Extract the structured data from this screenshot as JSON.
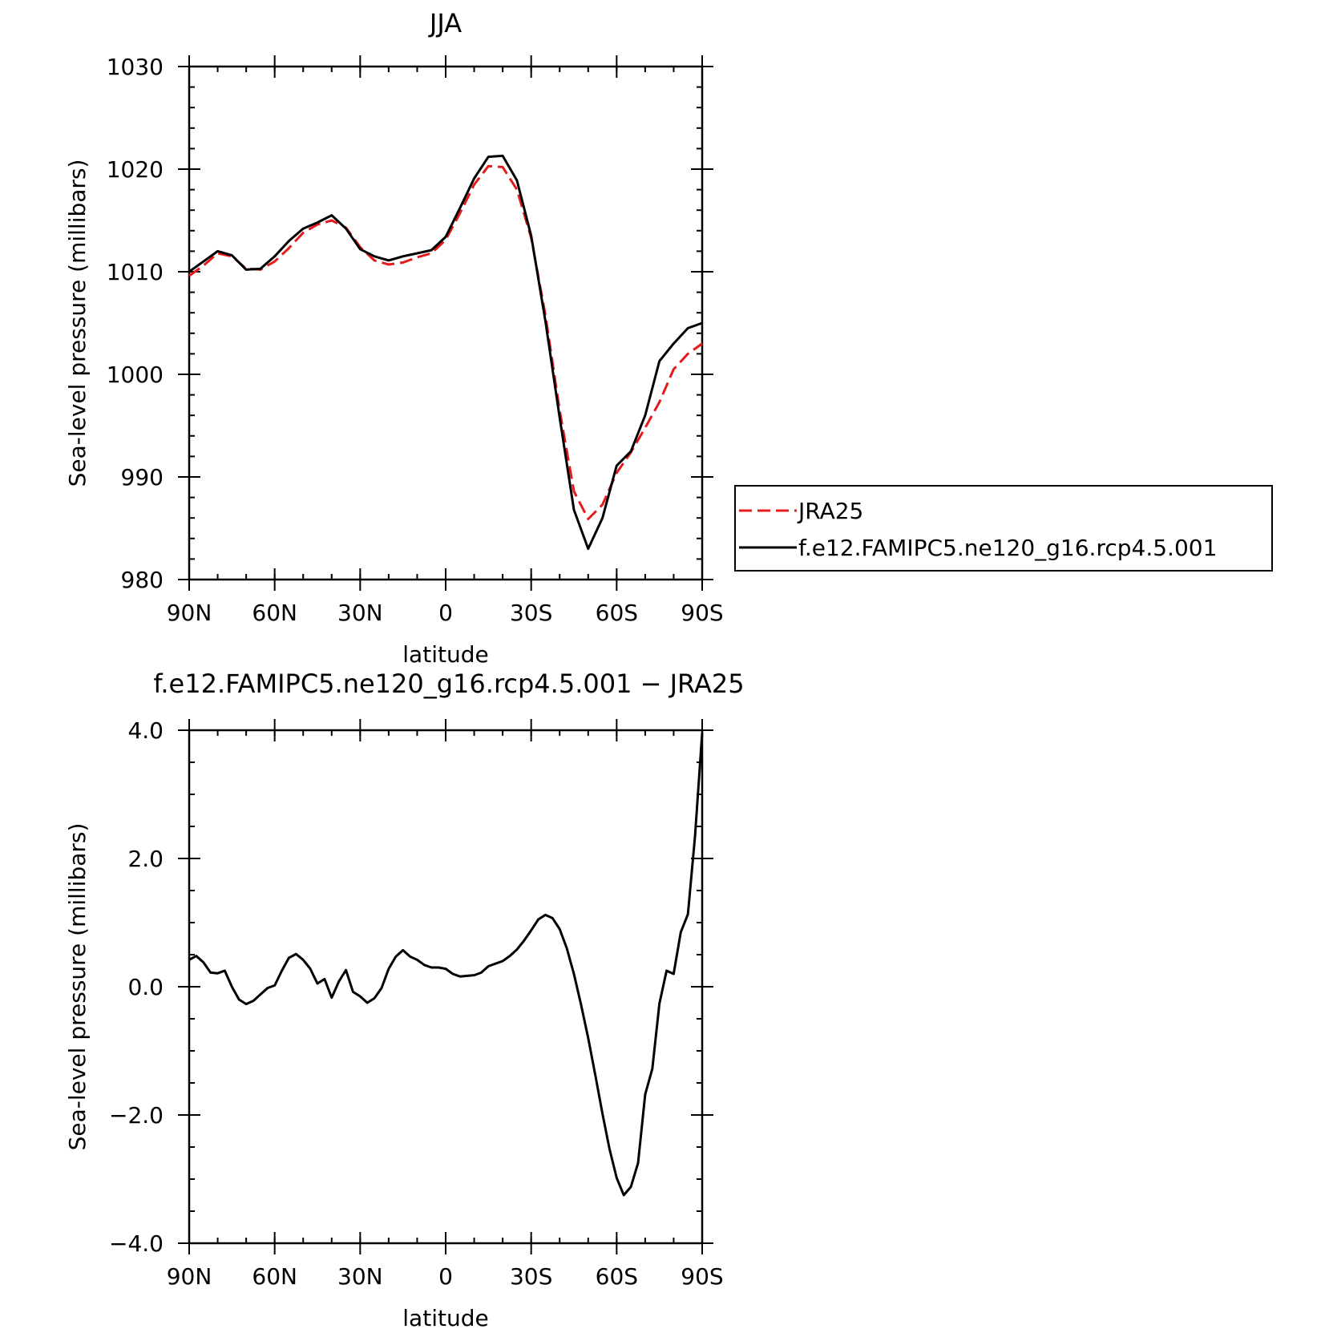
{
  "chart_data": [
    {
      "type": "line",
      "title": "JJA",
      "xlabel": "latitude",
      "ylabel": "Sea-level pressure (millibars)",
      "xlim": [
        90,
        -90
      ],
      "ylim": [
        980,
        1030
      ],
      "x_tick_values": [
        90,
        60,
        30,
        0,
        -30,
        -60,
        -90
      ],
      "x_tick_labels": [
        "90N",
        "60N",
        "30N",
        "0",
        "30S",
        "60S",
        "90S"
      ],
      "y_tick_values": [
        980,
        990,
        1000,
        1010,
        1020,
        1030
      ],
      "y_tick_labels": [
        "980",
        "990",
        "1000",
        "1010",
        "1020",
        "1030"
      ],
      "grid": false,
      "legend_position": "right",
      "series": [
        {
          "name": "JRA25",
          "color": "#e41a1c",
          "style": "dashed",
          "x": [
            90,
            85,
            80,
            75,
            70,
            65,
            60,
            55,
            50,
            45,
            40,
            35,
            30,
            25,
            20,
            15,
            10,
            5,
            0,
            -5,
            -10,
            -15,
            -20,
            -25,
            -30,
            -35,
            -40,
            -45,
            -50,
            -55,
            -60,
            -65,
            -70,
            -75,
            -80,
            -85,
            -90
          ],
          "y": [
            1009.6,
            1010.6,
            1011.8,
            1011.5,
            1010.3,
            1010.2,
            1011.0,
            1012.3,
            1013.8,
            1014.6,
            1015.0,
            1014.3,
            1012.4,
            1011.1,
            1010.7,
            1010.9,
            1011.4,
            1011.8,
            1013.1,
            1015.7,
            1018.5,
            1020.3,
            1020.2,
            1018.0,
            1013.3,
            1005.8,
            996.5,
            988.6,
            985.9,
            987.3,
            990.4,
            992.4,
            994.8,
            997.3,
            1000.5,
            1002.0,
            1003.0
          ]
        },
        {
          "name": "f.e12.FAMIPC5.ne120_g16.rcp4.5.001",
          "color": "#000000",
          "style": "solid",
          "x": [
            90,
            85,
            80,
            75,
            70,
            65,
            60,
            55,
            50,
            45,
            40,
            35,
            30,
            25,
            20,
            15,
            10,
            5,
            0,
            -5,
            -10,
            -15,
            -20,
            -25,
            -30,
            -35,
            -40,
            -45,
            -50,
            -55,
            -60,
            -65,
            -70,
            -75,
            -80,
            -85,
            -90
          ],
          "y": [
            1010.0,
            1011.0,
            1012.0,
            1011.6,
            1010.2,
            1010.3,
            1011.5,
            1013.0,
            1014.2,
            1014.8,
            1015.5,
            1014.2,
            1012.2,
            1011.5,
            1011.1,
            1011.5,
            1011.8,
            1012.1,
            1013.4,
            1016.2,
            1019.1,
            1021.2,
            1021.3,
            1018.9,
            1013.5,
            1005.2,
            995.8,
            986.8,
            983.0,
            986.0,
            991.1,
            992.5,
            996.0,
            1001.3,
            1003.0,
            1004.5,
            1005.0
          ]
        }
      ]
    },
    {
      "type": "line",
      "title": "f.e12.FAMIPC5.ne120_g16.rcp4.5.001 − JRA25",
      "xlabel": "latitude",
      "ylabel": "Sea-level pressure (millibars)",
      "xlim": [
        90,
        -90
      ],
      "ylim": [
        -4.0,
        4.0
      ],
      "x_tick_values": [
        90,
        60,
        30,
        0,
        -30,
        -60,
        -90
      ],
      "x_tick_labels": [
        "90N",
        "60N",
        "30N",
        "0",
        "30S",
        "60S",
        "90S"
      ],
      "y_tick_values": [
        -4,
        -2,
        0,
        2,
        4
      ],
      "y_tick_labels": [
        "−4.0",
        "−2.0",
        "0.0",
        "2.0",
        "4.0"
      ],
      "grid": false,
      "series": [
        {
          "name": "",
          "color": "#000000",
          "style": "solid",
          "x": [
            90,
            87.5,
            85,
            82.5,
            80,
            77.5,
            75,
            72.5,
            70,
            67.5,
            65,
            62.5,
            60,
            57.5,
            55,
            52.5,
            50,
            47.5,
            45,
            42.5,
            40,
            37.5,
            35,
            32.5,
            30,
            27.5,
            25,
            22.5,
            20,
            17.5,
            15,
            12.5,
            10,
            7.5,
            5,
            2.5,
            0,
            -2.5,
            -5,
            -7.5,
            -10,
            -12.5,
            -15,
            -17.5,
            -20,
            -22.5,
            -25,
            -27.5,
            -30,
            -32.5,
            -35,
            -37.5,
            -40,
            -42.5,
            -45,
            -47.5,
            -50,
            -52.5,
            -55,
            -57.5,
            -60,
            -62.5,
            -65,
            -67.5,
            -70,
            -72.5,
            -75,
            -77.5,
            -80,
            -82.5,
            -85,
            -87.5,
            -90
          ],
          "y": [
            0.42,
            0.48,
            0.38,
            0.22,
            0.21,
            0.25,
            0.0,
            -0.2,
            -0.27,
            -0.22,
            -0.12,
            -0.02,
            0.02,
            0.25,
            0.45,
            0.51,
            0.42,
            0.28,
            0.05,
            0.12,
            -0.17,
            0.08,
            0.26,
            -0.08,
            -0.15,
            -0.25,
            -0.18,
            -0.02,
            0.28,
            0.47,
            0.57,
            0.47,
            0.42,
            0.34,
            0.3,
            0.3,
            0.28,
            0.2,
            0.16,
            0.17,
            0.18,
            0.22,
            0.32,
            0.36,
            0.4,
            0.48,
            0.58,
            0.72,
            0.88,
            1.05,
            1.12,
            1.07,
            0.9,
            0.6,
            0.2,
            -0.28,
            -0.8,
            -1.38,
            -1.98,
            -2.53,
            -2.98,
            -3.25,
            -3.12,
            -2.75,
            -1.68,
            -1.28,
            -0.26,
            0.25,
            0.2,
            0.85,
            1.13,
            2.35,
            3.96
          ]
        }
      ]
    }
  ]
}
